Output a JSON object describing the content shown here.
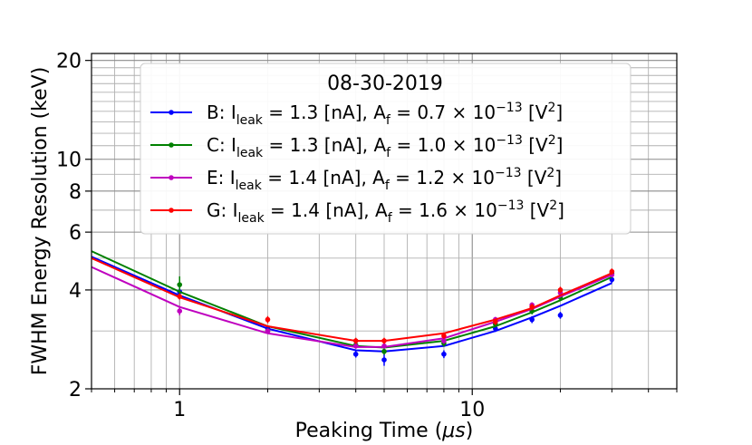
{
  "chart_data": {
    "type": "line",
    "title": "",
    "legend_title": "08-30-2019",
    "xlabel_prefix": "Peaking Time (",
    "xlabel_unit": "μs",
    "xlabel_suffix": ")",
    "ylabel": "FWHM Energy Resolution (keV)",
    "x_scale": "log",
    "y_scale": "log",
    "xlim": [
      0.5,
      50
    ],
    "ylim": [
      2,
      21
    ],
    "x_ticks": [
      1,
      10
    ],
    "x_tick_labels": [
      "1",
      "10"
    ],
    "y_ticks": [
      2,
      4,
      6,
      8,
      10,
      20
    ],
    "y_tick_labels": [
      "2",
      "4",
      "6",
      "8",
      "10",
      "20"
    ],
    "grid": true,
    "legend_position": "top-center",
    "series": [
      {
        "name": "B",
        "legend": {
          "prefix": "B: I",
          "sub1": "leak",
          "mid1": " = 1.3 [nA], A",
          "sub2": "f",
          "mid2": " = 0.7 × 10",
          "sup1": "−13",
          "mid3": " [V",
          "sup2": "2",
          "end": "]"
        },
        "color": "#0000ff",
        "fit_x": [
          0.5,
          1,
          2,
          4,
          5,
          8,
          12,
          16,
          20,
          30
        ],
        "fit_y": [
          5.05,
          3.85,
          3.05,
          2.62,
          2.6,
          2.7,
          3.0,
          3.3,
          3.58,
          4.2
        ],
        "points_x": [
          1,
          2,
          4,
          5,
          8,
          12,
          16,
          20,
          30
        ],
        "points_y": [
          3.95,
          3.05,
          2.55,
          2.45,
          2.55,
          3.05,
          3.25,
          3.35,
          4.3
        ],
        "errors": [
          0.1,
          0.06,
          0.06,
          0.1,
          0.07,
          0.07,
          0.08,
          0.08,
          0.1
        ]
      },
      {
        "name": "C",
        "legend": {
          "prefix": "C: I",
          "sub1": "leak",
          "mid1": " = 1.3 [nA], A",
          "sub2": "f",
          "mid2": " = 1.0 × 10",
          "sup1": "−13",
          "mid3": " [V",
          "sup2": "2",
          "end": "]"
        },
        "color": "#008000",
        "fit_x": [
          0.5,
          1,
          2,
          4,
          5,
          8,
          12,
          16,
          20,
          30
        ],
        "fit_y": [
          5.25,
          3.95,
          3.1,
          2.7,
          2.67,
          2.8,
          3.1,
          3.42,
          3.72,
          4.38
        ],
        "points_x": [
          1,
          2,
          4,
          5,
          8,
          12,
          16,
          20,
          30
        ],
        "points_y": [
          4.15,
          3.0,
          2.72,
          2.6,
          2.75,
          3.15,
          3.45,
          3.8,
          4.5
        ],
        "errors": [
          0.25,
          0.06,
          0.05,
          0.06,
          0.06,
          0.07,
          0.08,
          0.08,
          0.12
        ]
      },
      {
        "name": "E",
        "legend": {
          "prefix": "E: I",
          "sub1": "leak",
          "mid1": " = 1.4 [nA], A",
          "sub2": "f",
          "mid2": " = 1.2 × 10",
          "sup1": "−13",
          "mid3": " [V",
          "sup2": "2",
          "end": "]"
        },
        "color": "#bf00bf",
        "fit_x": [
          0.5,
          1,
          2,
          4,
          5,
          8,
          12,
          16,
          20,
          30
        ],
        "fit_y": [
          4.7,
          3.55,
          2.95,
          2.68,
          2.68,
          2.85,
          3.2,
          3.5,
          3.82,
          4.45
        ],
        "points_x": [
          1,
          2,
          4,
          5,
          8,
          12,
          16,
          20,
          30
        ],
        "points_y": [
          3.45,
          3.0,
          2.7,
          2.7,
          2.8,
          3.25,
          3.6,
          3.92,
          4.45
        ],
        "errors": [
          0.1,
          0.05,
          0.05,
          0.05,
          0.06,
          0.06,
          0.07,
          0.07,
          0.08
        ]
      },
      {
        "name": "G",
        "legend": {
          "prefix": "G: I",
          "sub1": "leak",
          "mid1": " = 1.4 [nA], A",
          "sub2": "f",
          "mid2": " = 1.6 × 10",
          "sup1": "−13",
          "mid3": " [V",
          "sup2": "2",
          "end": "]"
        },
        "color": "#ff0000",
        "fit_x": [
          0.5,
          1,
          2,
          4,
          5,
          8,
          12,
          16,
          20,
          30
        ],
        "fit_y": [
          5.0,
          3.8,
          3.1,
          2.8,
          2.8,
          2.95,
          3.25,
          3.52,
          3.85,
          4.5
        ],
        "points_x": [
          1,
          2,
          4,
          5,
          8,
          12,
          16,
          20,
          30
        ],
        "points_y": [
          3.82,
          3.25,
          2.8,
          2.8,
          2.9,
          3.2,
          3.55,
          4.0,
          4.55
        ],
        "errors": [
          0.08,
          0.08,
          0.06,
          0.06,
          0.06,
          0.07,
          0.08,
          0.09,
          0.1
        ]
      }
    ]
  }
}
